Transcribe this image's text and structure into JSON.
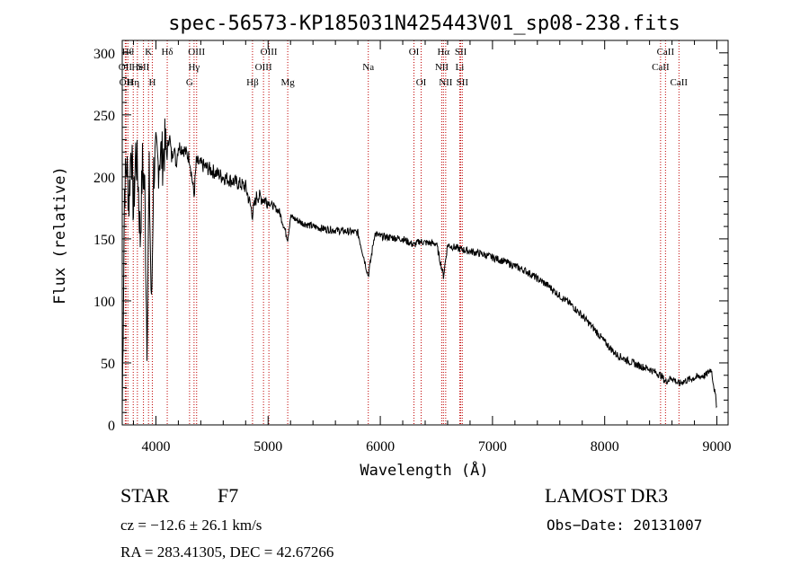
{
  "chart_data": {
    "type": "line",
    "title": "spec-56573-KP185031N425443V01_sp08-238.fits",
    "xlabel": "Wavelength (Å)",
    "ylabel": "Flux (relative)",
    "xlim": [
      3700,
      9100
    ],
    "ylim": [
      0,
      310
    ],
    "x_ticks": [
      4000,
      5000,
      6000,
      7000,
      8000,
      9000
    ],
    "y_ticks": [
      0,
      50,
      100,
      150,
      200,
      250,
      300
    ],
    "series": [
      {
        "name": "flux",
        "x": [
          3700,
          3720,
          3740,
          3760,
          3780,
          3800,
          3820,
          3840,
          3860,
          3880,
          3900,
          3920,
          3940,
          3960,
          3980,
          4000,
          4020,
          4040,
          4060,
          4080,
          4100,
          4120,
          4140,
          4160,
          4180,
          4200,
          4250,
          4300,
          4340,
          4360,
          4400,
          4500,
          4600,
          4700,
          4800,
          4861,
          4900,
          5000,
          5100,
          5175,
          5200,
          5300,
          5400,
          5500,
          5600,
          5700,
          5800,
          5893,
          5950,
          6000,
          6100,
          6200,
          6300,
          6350,
          6400,
          6500,
          6563,
          6600,
          6700,
          6800,
          6900,
          7000,
          7100,
          7200,
          7300,
          7400,
          7500,
          7600,
          7700,
          7800,
          7900,
          8000,
          8100,
          8200,
          8300,
          8400,
          8500,
          8542,
          8600,
          8662,
          8700,
          8800,
          8900,
          8950,
          9000
        ],
        "y": [
          10,
          190,
          210,
          180,
          230,
          170,
          220,
          200,
          150,
          210,
          190,
          70,
          200,
          90,
          205,
          215,
          210,
          220,
          215,
          225,
          218,
          235,
          215,
          225,
          210,
          225,
          222,
          215,
          185,
          212,
          210,
          205,
          200,
          196,
          192,
          170,
          185,
          180,
          172,
          150,
          168,
          163,
          160,
          158,
          157,
          156,
          155,
          120,
          154,
          152,
          151,
          150,
          145,
          148,
          147,
          146,
          120,
          145,
          142,
          140,
          138,
          135,
          132,
          128,
          124,
          118,
          112,
          104,
          97,
          88,
          78,
          67,
          57,
          52,
          48,
          45,
          40,
          35,
          38,
          33,
          35,
          38,
          40,
          45,
          15
        ]
      }
    ],
    "line_markers": [
      {
        "wl": 3727,
        "label": "OII",
        "row": 2
      },
      {
        "wl": 3734,
        "label": "OII",
        "row": 3
      },
      {
        "wl": 3750,
        "label": "Hθ",
        "row": 1
      },
      {
        "wl": 3798,
        "label": "Hη",
        "row": 3
      },
      {
        "wl": 3835,
        "label": "He",
        "row": 2
      },
      {
        "wl": 3889,
        "label": "SII",
        "row": 2
      },
      {
        "wl": 3934,
        "label": "K",
        "row": 1
      },
      {
        "wl": 3968,
        "label": "H",
        "row": 3
      },
      {
        "wl": 4101,
        "label": "Hδ",
        "row": 1
      },
      {
        "wl": 4300,
        "label": "G",
        "row": 3
      },
      {
        "wl": 4340,
        "label": "Hγ",
        "row": 2
      },
      {
        "wl": 4363,
        "label": "OIII",
        "row": 1
      },
      {
        "wl": 4861,
        "label": "Hβ",
        "row": 3
      },
      {
        "wl": 4959,
        "label": "OIII",
        "row": 2
      },
      {
        "wl": 5007,
        "label": "OIII",
        "row": 1
      },
      {
        "wl": 5175,
        "label": "Mg",
        "row": 3
      },
      {
        "wl": 5893,
        "label": "Na",
        "row": 2
      },
      {
        "wl": 6300,
        "label": "OI",
        "row": 1
      },
      {
        "wl": 6364,
        "label": "OI",
        "row": 3
      },
      {
        "wl": 6548,
        "label": "NII",
        "row": 2
      },
      {
        "wl": 6563,
        "label": "Hα",
        "row": 1
      },
      {
        "wl": 6583,
        "label": "NII",
        "row": 3
      },
      {
        "wl": 6708,
        "label": "Li",
        "row": 2
      },
      {
        "wl": 6717,
        "label": "SII",
        "row": 1
      },
      {
        "wl": 6731,
        "label": "SII",
        "row": 3
      },
      {
        "wl": 8498,
        "label": "CaII",
        "row": 2
      },
      {
        "wl": 8542,
        "label": "CaII",
        "row": 1
      },
      {
        "wl": 8662,
        "label": "CaII",
        "row": 3
      }
    ]
  },
  "info": {
    "class": "STAR",
    "subclass": "F7",
    "survey": "LAMOST DR3",
    "cz": "cz = −12.6 ± 26.1 km/s",
    "obs_date": "Obs−Date: 20131007",
    "coords": "RA = 283.41305, DEC =  42.67266"
  }
}
